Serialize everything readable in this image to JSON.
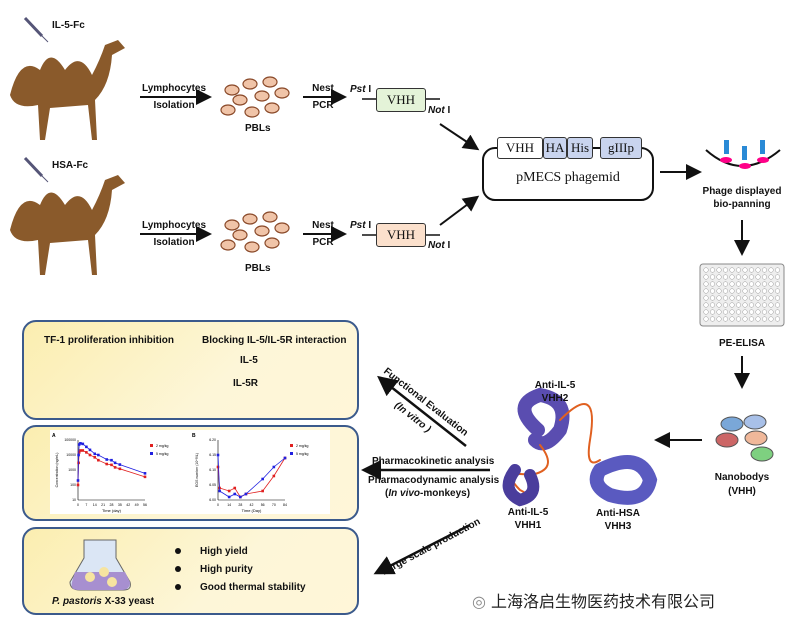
{
  "top": {
    "antigen1": "IL-5-Fc",
    "antigen2": "HSA-Fc",
    "step1_line1": "Lymphocytes",
    "step1_line2": "Isolation",
    "pbls": "PBLs",
    "step2_line1": "Nest",
    "step2_line2": "PCR",
    "pst": "Pst",
    "pst_suffix": " I",
    "not": "Not",
    "not_suffix": " I",
    "vhh": "VHH",
    "phagemid": {
      "segments": [
        "VHH",
        "HA",
        "His",
        "gIIIp"
      ],
      "name": "pMECS phagemid"
    },
    "panning": [
      "Phage displayed",
      "bio-panning"
    ],
    "elisa": "PE-ELISA",
    "nanobodies": [
      "Nanobodys",
      "(VHH)"
    ]
  },
  "structure": {
    "vhh2": [
      "Anti-IL-5",
      "VHH2"
    ],
    "vhh1": [
      "Anti-IL-5",
      "VHH1"
    ],
    "vhh3": [
      "Anti-HSA",
      "VHH3"
    ]
  },
  "arrows": {
    "functional": "Functional Evaluation",
    "invitro": "(In vitro )",
    "pk": "Pharmacokinetic analysis",
    "pd": "Pharmacodynamic analysis",
    "pd_note_pre": "(",
    "pd_note_it": "In vivo",
    "pd_note_post": "-monkeys)",
    "large": "Large scale production"
  },
  "panel1": {
    "left_title": "TF-1 proliferation inhibition",
    "right_title": "Blocking IL-5/IL-5R interaction",
    "il5": "IL-5",
    "il5r": "IL-5R"
  },
  "panel3": {
    "bullets": [
      "High yield",
      "High purity",
      "Good thermal stability"
    ],
    "yeast_it": "P. pastoris",
    "yeast_rest": " X-33 yeast"
  },
  "watermark": "上海洛启生物医药技术有限公司",
  "colors": {
    "border": "#3b5a8c",
    "panel": "#fbeeb0",
    "red": "#e02020",
    "blue": "#2020e0"
  },
  "chart_data": [
    {
      "type": "line",
      "panel": "A",
      "xlabel": "Time (day)",
      "ylabel": "Concentration (ng/mL)",
      "yscale": "log",
      "ylim": [
        10,
        100000
      ],
      "xlim": [
        0,
        56
      ],
      "xticks": [
        0,
        7,
        14,
        21,
        28,
        35,
        42,
        49,
        56
      ],
      "yticks": [
        "10",
        "100",
        "1000",
        "10000",
        "100000"
      ],
      "series": [
        {
          "name": "2 mg/kg",
          "color": "#e02020",
          "x": [
            0,
            0.5,
            1,
            2,
            4,
            7,
            10,
            14,
            17,
            24,
            28,
            31,
            35,
            56
          ],
          "y": [
            100,
            3000,
            15000,
            20000,
            20000,
            15000,
            10000,
            7000,
            4500,
            2500,
            2200,
            1500,
            1200,
            350
          ]
        },
        {
          "name": "5 mg/kg",
          "color": "#2020e0",
          "x": [
            0,
            0.5,
            1,
            2,
            4,
            7,
            10,
            14,
            17,
            24,
            28,
            31,
            35,
            56
          ],
          "y": [
            200,
            10000,
            50000,
            60000,
            55000,
            35000,
            22000,
            12000,
            10000,
            5000,
            4500,
            3000,
            2300,
            600
          ]
        }
      ]
    },
    {
      "type": "line",
      "panel": "B",
      "xlabel": "Time (Day)",
      "ylabel": "EOS number (10^9/L)",
      "ylim": [
        6.0,
        6.2
      ],
      "xlim": [
        0,
        84
      ],
      "xticks": [
        0,
        14,
        28,
        42,
        56,
        70,
        84
      ],
      "yticks": [
        "6.00",
        "6.05",
        "6.10",
        "6.15",
        "6.20"
      ],
      "series": [
        {
          "name": "2 mg/kg",
          "color": "#e02020",
          "x": [
            0,
            2,
            14,
            21,
            28,
            35,
            56,
            70,
            84
          ],
          "y": [
            6.11,
            6.04,
            6.03,
            6.04,
            6.01,
            6.02,
            6.03,
            6.08,
            6.14
          ]
        },
        {
          "name": "5 mg/kg",
          "color": "#2020e0",
          "x": [
            0,
            2,
            14,
            21,
            28,
            35,
            56,
            70,
            84
          ],
          "y": [
            6.15,
            6.03,
            6.01,
            6.02,
            6.01,
            6.02,
            6.07,
            6.11,
            6.14
          ]
        }
      ]
    }
  ]
}
